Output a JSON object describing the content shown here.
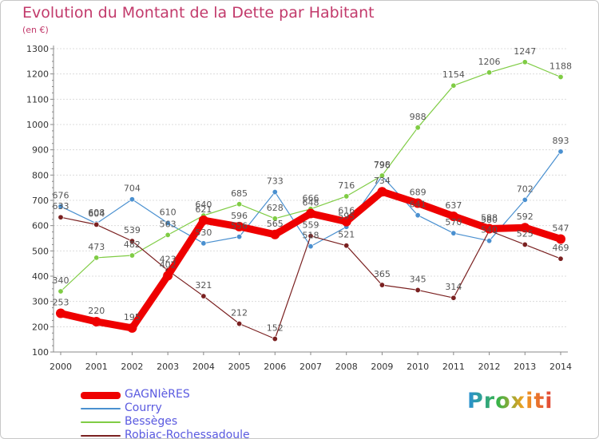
{
  "header": {
    "title": "Evolution du Montant de la Dette par Habitant",
    "subtitle": "(en €)"
  },
  "logo": {
    "text": "Proxiti"
  },
  "colors": {
    "title": "#c23a6b",
    "legend_text": "#5a5ae0",
    "axis": "#888888",
    "grid": "#dcdcdc",
    "label": "#555555"
  },
  "chart_data": {
    "type": "line",
    "title": "Evolution du Montant de la Dette par Habitant",
    "subtitle": "(en €)",
    "xlabel": "",
    "ylabel": "",
    "x": [
      "2000",
      "2001",
      "2002",
      "2003",
      "2004",
      "2005",
      "2006",
      "2007",
      "2008",
      "2009",
      "2010",
      "2011",
      "2012",
      "2013",
      "2014"
    ],
    "ylim": [
      100,
      1300
    ],
    "yticks": [
      100,
      200,
      300,
      400,
      500,
      600,
      700,
      800,
      900,
      1000,
      1100,
      1200,
      1300
    ],
    "grid": "horizontal",
    "legend_position": "bottom-left",
    "series": [
      {
        "name": "GAGNIèRES",
        "color": "#ee0000",
        "width": 9,
        "values": [
          253,
          220,
          195,
          402,
          621,
          596,
          565,
          648,
          616,
          734,
          689,
          637,
          588,
          592,
          547
        ]
      },
      {
        "name": "Courry",
        "color": "#4a90d0",
        "width": 1.2,
        "values": [
          676,
          608,
          704,
          610,
          530,
          556,
          733,
          518,
          595,
          796,
          641,
          570,
          540,
          702,
          893
        ]
      },
      {
        "name": "Bessèges",
        "color": "#7fcc44",
        "width": 1.2,
        "values": [
          340,
          473,
          482,
          563,
          640,
          685,
          628,
          666,
          716,
          798,
          988,
          1154,
          1206,
          1247,
          1188
        ]
      },
      {
        "name": "Robiac-Rochessadoule",
        "color": "#7a2020",
        "width": 1.2,
        "values": [
          633,
          604,
          539,
          423,
          321,
          212,
          152,
          559,
          521,
          365,
          345,
          314,
          580,
          525,
          469
        ]
      }
    ]
  }
}
